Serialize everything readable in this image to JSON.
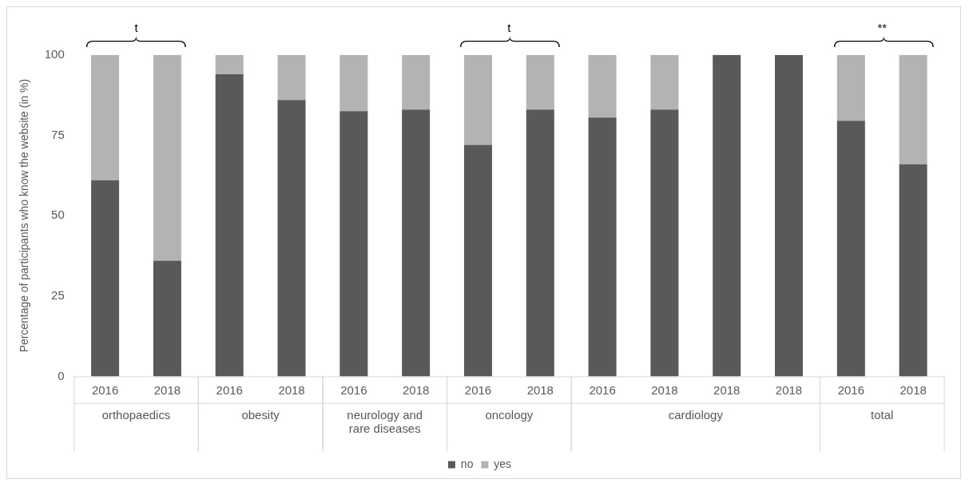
{
  "chart_data": {
    "type": "bar",
    "stacked": true,
    "ylabel": "Percentage of participants who know the website (in %)",
    "categories": [
      "2016",
      "2018",
      "2016",
      "2018",
      "2016",
      "2018",
      "2016",
      "2018",
      "2016",
      "2018",
      "2018",
      "2018",
      "2016",
      "2018"
    ],
    "series": [
      {
        "name": "no",
        "color": "#595959",
        "values": [
          61,
          36,
          94,
          86,
          82.5,
          83,
          72,
          83,
          80.5,
          83,
          100,
          100,
          79.5,
          66
        ]
      },
      {
        "name": "yes",
        "color": "#b3b3b3",
        "values": [
          39,
          64,
          6,
          14,
          17.5,
          17,
          28,
          17,
          19.5,
          17,
          0,
          0,
          20.5,
          34
        ]
      }
    ],
    "ylim": [
      0,
      100
    ],
    "yticks": [
      0,
      25,
      50,
      75,
      100
    ],
    "grid": false,
    "legend": "bottom",
    "annotations": [
      "orthopaedics",
      "obesity",
      "neurology and rare diseases",
      "oncology",
      "cardiology",
      "total",
      "t",
      "t",
      "**"
    ]
  }
}
